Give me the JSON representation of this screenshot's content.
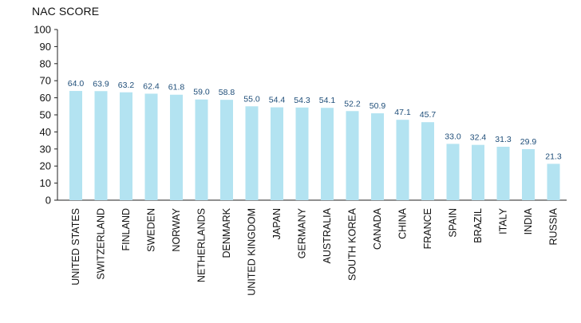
{
  "chart_data": {
    "type": "bar",
    "ylabel": "NAC SCORE",
    "xlabel": "",
    "title": "",
    "ylim": [
      0,
      100
    ],
    "yticks": [
      0,
      10,
      20,
      30,
      40,
      50,
      60,
      70,
      80,
      90,
      100
    ],
    "grid": false,
    "categories": [
      "UNITED STATES",
      "SWITZERLAND",
      "FINLAND",
      "SWEDEN",
      "NORWAY",
      "NETHERLANDS",
      "DENMARK",
      "UNITED KINGDOM",
      "JAPAN",
      "GERMANY",
      "AUSTRALIA",
      "SOUTH KOREA",
      "CANADA",
      "CHINA",
      "FRANCE",
      "SPAIN",
      "BRAZIL",
      "ITALY",
      "INDIA",
      "RUSSIA"
    ],
    "values": [
      64.0,
      63.9,
      63.2,
      62.4,
      61.8,
      59.0,
      58.8,
      55.0,
      54.4,
      54.3,
      54.1,
      52.2,
      50.9,
      47.1,
      45.7,
      33.0,
      32.4,
      31.3,
      29.9,
      21.3
    ],
    "value_labels": [
      "64.0",
      "63.9",
      "63.2",
      "62.4",
      "61.8",
      "59.0",
      "58.8",
      "55.0",
      "54.4",
      "54.3",
      "54.1",
      "52.2",
      "50.9",
      "47.1",
      "45.7",
      "33.0",
      "32.4",
      "31.3",
      "29.9",
      "21.3"
    ],
    "bar_color": "#b3e3f1",
    "label_color": "#1f4e79",
    "axis_color": "#222222"
  }
}
